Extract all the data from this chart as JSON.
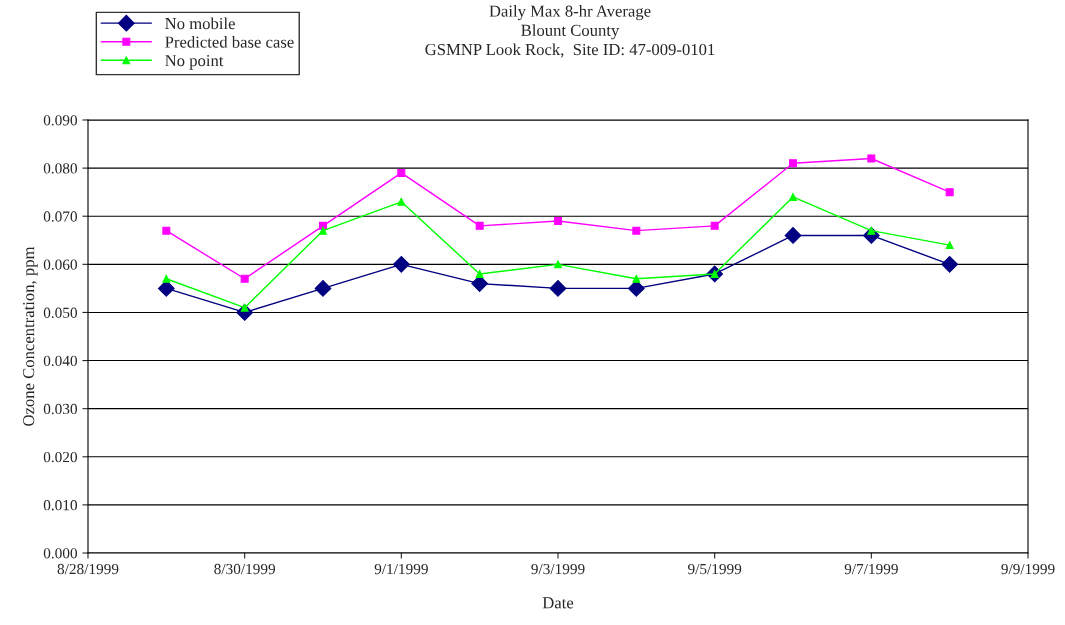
{
  "chart_data": {
    "type": "line",
    "title": "Daily Max 8-hr Average\nBlount County\nGSMNP Look Rock,  Site ID: 47-009-0101",
    "xlabel": "Date",
    "ylabel": "Ozone Concentration, ppm",
    "x": [
      "1999-08-29",
      "1999-08-30",
      "1999-08-31",
      "1999-09-01",
      "1999-09-02",
      "1999-09-03",
      "1999-09-04",
      "1999-09-05",
      "1999-09-06",
      "1999-09-07",
      "1999-09-08"
    ],
    "series": [
      {
        "name": "No mobile",
        "color": "#000080",
        "marker": "diamond",
        "values": [
          0.055,
          0.05,
          0.055,
          0.06,
          0.056,
          0.055,
          0.055,
          0.058,
          0.066,
          0.066,
          0.06
        ]
      },
      {
        "name": "Predicted base case",
        "color": "#ff00ff",
        "marker": "square",
        "values": [
          0.067,
          0.057,
          0.068,
          0.079,
          0.068,
          0.069,
          0.067,
          0.068,
          0.081,
          0.082,
          0.075
        ]
      },
      {
        "name": "No point",
        "color": "#00ff00",
        "marker": "triangle",
        "values": [
          0.057,
          0.051,
          0.067,
          0.073,
          0.058,
          0.06,
          0.057,
          0.058,
          0.074,
          0.067,
          0.064
        ]
      }
    ],
    "xlim": [
      "1999-08-28",
      "1999-09-09"
    ],
    "xticks": [
      {
        "value": "1999-08-28",
        "label": "8/28/1999"
      },
      {
        "value": "1999-08-30",
        "label": "8/30/1999"
      },
      {
        "value": "1999-09-01",
        "label": "9/1/1999"
      },
      {
        "value": "1999-09-03",
        "label": "9/3/1999"
      },
      {
        "value": "1999-09-05",
        "label": "9/5/1999"
      },
      {
        "value": "1999-09-07",
        "label": "9/7/1999"
      },
      {
        "value": "1999-09-09",
        "label": "9/9/1999"
      }
    ],
    "ylim": [
      0,
      0.09
    ],
    "yticks": [
      {
        "value": 0,
        "label": "0.000"
      },
      {
        "value": 0.01,
        "label": "0.010"
      },
      {
        "value": 0.02,
        "label": "0.020"
      },
      {
        "value": 0.03,
        "label": "0.030"
      },
      {
        "value": 0.04,
        "label": "0.040"
      },
      {
        "value": 0.05,
        "label": "0.050"
      },
      {
        "value": 0.06,
        "label": "0.060"
      },
      {
        "value": 0.07,
        "label": "0.070"
      },
      {
        "value": 0.08,
        "label": "0.080"
      },
      {
        "value": 0.09,
        "label": "0.090"
      }
    ],
    "grid": "y",
    "legend": "top left",
    "line_style": "solid"
  }
}
